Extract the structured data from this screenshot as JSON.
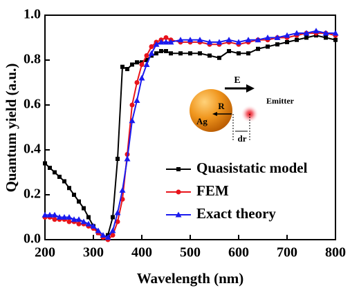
{
  "chart_data": {
    "type": "line",
    "xlabel": "Wavelength (nm)",
    "ylabel": "Quantum yield (a.u.)",
    "x": [
      200,
      210,
      220,
      230,
      240,
      250,
      260,
      270,
      280,
      290,
      300,
      310,
      320,
      330,
      340,
      350,
      360,
      370,
      380,
      390,
      400,
      410,
      420,
      430,
      440,
      450,
      460,
      480,
      500,
      520,
      540,
      560,
      580,
      600,
      620,
      640,
      660,
      680,
      700,
      720,
      740,
      760,
      780,
      800
    ],
    "series": [
      {
        "name": "Quasistatic model",
        "color": "#000000",
        "marker": "square",
        "values": [
          0.34,
          0.32,
          0.3,
          0.28,
          0.26,
          0.23,
          0.2,
          0.17,
          0.14,
          0.1,
          0.06,
          0.03,
          0.01,
          0.02,
          0.1,
          0.36,
          0.77,
          0.76,
          0.78,
          0.79,
          0.79,
          0.8,
          0.82,
          0.83,
          0.84,
          0.84,
          0.83,
          0.83,
          0.83,
          0.83,
          0.82,
          0.81,
          0.84,
          0.83,
          0.83,
          0.85,
          0.86,
          0.87,
          0.88,
          0.89,
          0.9,
          0.91,
          0.9,
          0.89
        ]
      },
      {
        "name": "FEM",
        "color": "#e8131b",
        "marker": "circle",
        "values": [
          0.1,
          0.1,
          0.09,
          0.09,
          0.09,
          0.08,
          0.08,
          0.07,
          0.07,
          0.06,
          0.05,
          0.03,
          0.01,
          0.0,
          0.02,
          0.08,
          0.18,
          0.38,
          0.6,
          0.7,
          0.78,
          0.82,
          0.86,
          0.88,
          0.89,
          0.9,
          0.89,
          0.88,
          0.88,
          0.88,
          0.87,
          0.87,
          0.88,
          0.87,
          0.88,
          0.89,
          0.89,
          0.9,
          0.9,
          0.91,
          0.92,
          0.92,
          0.92,
          0.91
        ]
      },
      {
        "name": "Exact theory",
        "color": "#1a1aee",
        "marker": "triangle",
        "values": [
          0.11,
          0.11,
          0.11,
          0.1,
          0.1,
          0.1,
          0.09,
          0.09,
          0.08,
          0.07,
          0.06,
          0.04,
          0.02,
          0.01,
          0.04,
          0.12,
          0.22,
          0.36,
          0.53,
          0.62,
          0.72,
          0.78,
          0.83,
          0.87,
          0.88,
          0.88,
          0.88,
          0.89,
          0.89,
          0.89,
          0.88,
          0.88,
          0.89,
          0.88,
          0.89,
          0.89,
          0.9,
          0.9,
          0.91,
          0.92,
          0.92,
          0.93,
          0.92,
          0.92
        ]
      }
    ],
    "xlim": [
      200,
      800
    ],
    "xticks": [
      200,
      300,
      400,
      500,
      600,
      700,
      800
    ],
    "ylim": [
      0,
      1
    ],
    "yticks": [
      {
        "value": 0,
        "label": "0.0"
      },
      0.2,
      0.4,
      0.6,
      0.8,
      {
        "value": 1,
        "label": "1.0"
      }
    ],
    "annotations": [
      "E",
      "Emitter",
      "R",
      "Ag",
      "dr"
    ]
  }
}
